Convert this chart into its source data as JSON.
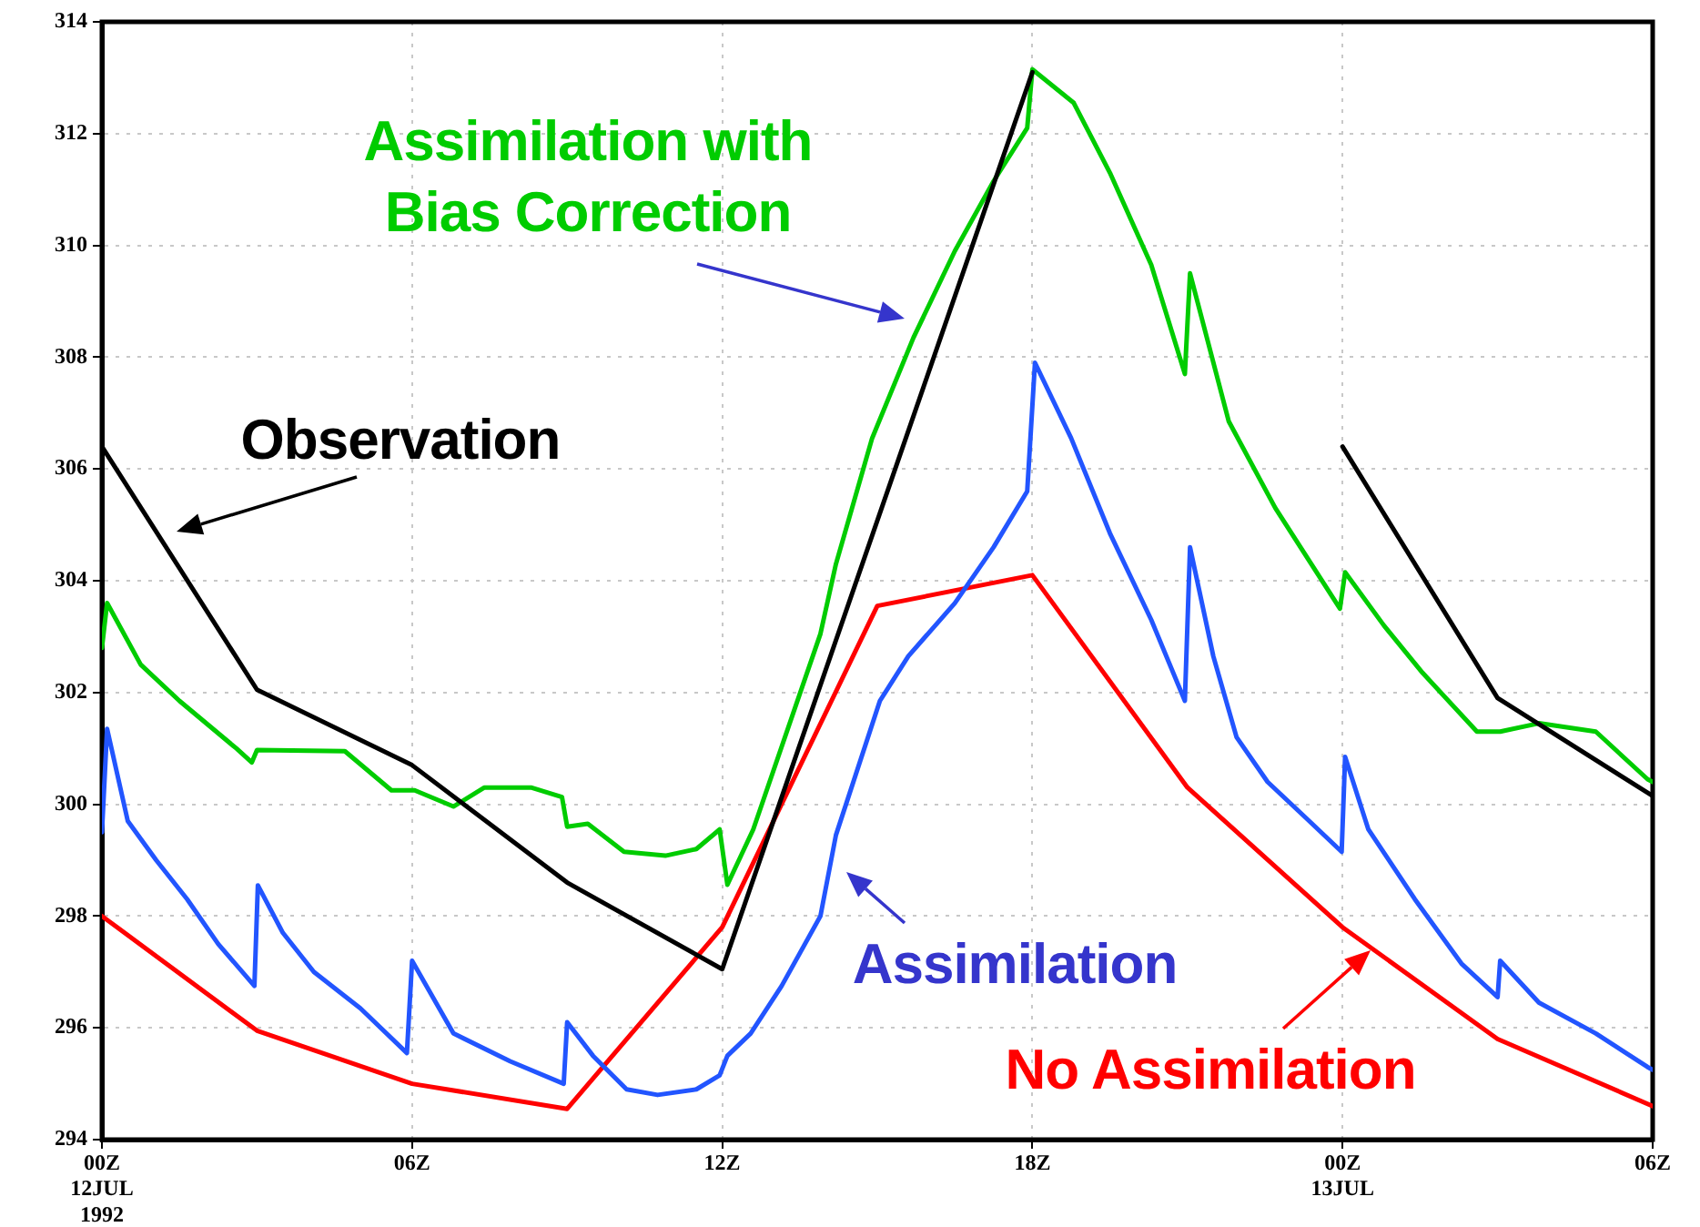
{
  "chart_data": {
    "type": "line",
    "xlim": [
      "1992-07-12T00:00",
      "1992-07-13T06:00"
    ],
    "ylim": [
      294,
      314
    ],
    "xticks": [
      {
        "value": "1992-07-12T00:00",
        "label": "00Z\n12JUL\n1992"
      },
      {
        "value": "1992-07-12T06:00",
        "label": "06Z"
      },
      {
        "value": "1992-07-12T12:00",
        "label": "12Z"
      },
      {
        "value": "1992-07-12T18:00",
        "label": "18Z"
      },
      {
        "value": "1992-07-13T00:00",
        "label": "00Z\n13JUL"
      },
      {
        "value": "1992-07-13T06:00",
        "label": "06Z"
      }
    ],
    "yticks": [
      294,
      296,
      298,
      300,
      302,
      304,
      306,
      308,
      310,
      312,
      314
    ],
    "grid": true,
    "marker": "none",
    "series": [
      {
        "name": "Observation",
        "color": "#000000",
        "x": [
          "1992-07-12T00:00",
          "1992-07-12T03:00",
          "1992-07-12T06:00",
          "1992-07-12T09:00",
          "1992-07-12T12:00",
          "1992-07-12T18:00",
          "1992-07-12T21:00",
          "1992-07-13T00:00",
          "1992-07-13T03:00",
          "1992-07-13T06:00"
        ],
        "values": [
          306.4,
          302.05,
          300.7,
          298.6,
          297.05,
          313.1,
          null,
          306.4,
          301.9,
          300.15
        ]
      },
      {
        "name": "Assimilation with Bias Correction",
        "color": "#00cc00",
        "x": [
          "1992-07-12T00:00",
          "1992-07-12T00:06",
          "1992-07-12T00:45",
          "1992-07-12T01:30",
          "1992-07-12T02:36",
          "1992-07-12T02:54",
          "1992-07-12T03:00",
          "1992-07-12T04:42",
          "1992-07-12T05:36",
          "1992-07-12T06:03",
          "1992-07-12T06:48",
          "1992-07-12T07:24",
          "1992-07-12T08:18",
          "1992-07-12T08:54",
          "1992-07-12T09:00",
          "1992-07-12T09:24",
          "1992-07-12T10:06",
          "1992-07-12T10:54",
          "1992-07-12T11:30",
          "1992-07-12T11:57",
          "1992-07-12T12:06",
          "1992-07-12T12:36",
          "1992-07-12T13:54",
          "1992-07-12T14:12",
          "1992-07-12T14:54",
          "1992-07-12T15:42",
          "1992-07-12T16:30",
          "1992-07-12T17:15",
          "1992-07-12T17:54",
          "1992-07-12T18:00",
          "1992-07-12T18:48",
          "1992-07-12T19:30",
          "1992-07-12T20:18",
          "1992-07-12T20:57",
          "1992-07-12T21:03",
          "1992-07-12T21:48",
          "1992-07-12T22:42",
          "1992-07-12T23:57",
          "1992-07-13T00:03",
          "1992-07-13T00:48",
          "1992-07-13T01:33",
          "1992-07-13T02:36",
          "1992-07-13T03:03",
          "1992-07-13T03:48",
          "1992-07-13T04:54",
          "1992-07-13T05:54",
          "1992-07-13T06:00"
        ],
        "values": [
          302.8,
          303.6,
          302.5,
          301.85,
          301.0,
          300.75,
          300.97,
          300.95,
          300.25,
          300.25,
          299.96,
          300.3,
          300.3,
          300.13,
          299.6,
          299.65,
          299.15,
          299.08,
          299.2,
          299.55,
          298.56,
          299.55,
          303.05,
          304.3,
          306.55,
          308.35,
          309.9,
          311.15,
          312.1,
          313.15,
          312.55,
          311.3,
          309.65,
          307.7,
          309.5,
          306.85,
          305.3,
          303.5,
          304.15,
          303.2,
          302.35,
          301.3,
          301.3,
          301.45,
          301.3,
          300.45,
          300.4
        ]
      },
      {
        "name": "Assimilation",
        "color": "#2255ff",
        "x": [
          "1992-07-12T00:00",
          "1992-07-12T00:06",
          "1992-07-12T00:30",
          "1992-07-12T01:03",
          "1992-07-12T01:39",
          "1992-07-12T02:15",
          "1992-07-12T02:57",
          "1992-07-12T03:01",
          "1992-07-12T03:30",
          "1992-07-12T04:06",
          "1992-07-12T05:00",
          "1992-07-12T05:54",
          "1992-07-12T06:00",
          "1992-07-12T06:48",
          "1992-07-12T07:54",
          "1992-07-12T08:56",
          "1992-07-12T09:00",
          "1992-07-12T09:30",
          "1992-07-12T10:09",
          "1992-07-12T10:45",
          "1992-07-12T11:30",
          "1992-07-12T11:57",
          "1992-07-12T12:06",
          "1992-07-12T12:33",
          "1992-07-12T13:09",
          "1992-07-12T13:54",
          "1992-07-12T14:12",
          "1992-07-12T15:03",
          "1992-07-12T15:36",
          "1992-07-12T16:30",
          "1992-07-12T17:15",
          "1992-07-12T17:54",
          "1992-07-12T18:03",
          "1992-07-12T18:45",
          "1992-07-12T19:30",
          "1992-07-12T20:18",
          "1992-07-12T20:57",
          "1992-07-12T21:03",
          "1992-07-12T21:30",
          "1992-07-12T21:57",
          "1992-07-12T22:33",
          "1992-07-12T23:18",
          "1992-07-12T23:59",
          "1992-07-13T00:03",
          "1992-07-13T00:30",
          "1992-07-13T01:24",
          "1992-07-13T02:18",
          "1992-07-13T03:00",
          "1992-07-13T03:03",
          "1992-07-13T03:48",
          "1992-07-13T04:54",
          "1992-07-13T05:54",
          "1992-07-13T06:00"
        ],
        "values": [
          299.5,
          301.35,
          299.7,
          299.0,
          298.3,
          297.5,
          296.75,
          298.55,
          297.7,
          297.0,
          296.35,
          295.55,
          297.2,
          295.9,
          295.4,
          295.0,
          296.1,
          295.5,
          294.9,
          294.8,
          294.9,
          295.15,
          295.5,
          295.9,
          296.75,
          298.0,
          299.45,
          301.85,
          302.65,
          303.6,
          304.6,
          305.6,
          307.9,
          306.55,
          304.85,
          303.3,
          301.85,
          304.6,
          302.65,
          301.2,
          300.4,
          299.75,
          299.15,
          300.85,
          299.55,
          298.3,
          297.15,
          296.55,
          297.2,
          296.45,
          295.9,
          295.3,
          295.25
        ]
      },
      {
        "name": "No Assimilation",
        "color": "#ff0000",
        "x": [
          "1992-07-12T00:00",
          "1992-07-12T03:00",
          "1992-07-12T06:00",
          "1992-07-12T09:00",
          "1992-07-12T12:00",
          "1992-07-12T15:00",
          "1992-07-12T18:00",
          "1992-07-12T21:00",
          "1992-07-13T00:00",
          "1992-07-13T03:00",
          "1992-07-13T06:00"
        ],
        "values": [
          298.0,
          295.95,
          295.0,
          294.55,
          297.8,
          303.55,
          304.1,
          300.3,
          297.8,
          295.8,
          294.6
        ]
      }
    ]
  }
}
